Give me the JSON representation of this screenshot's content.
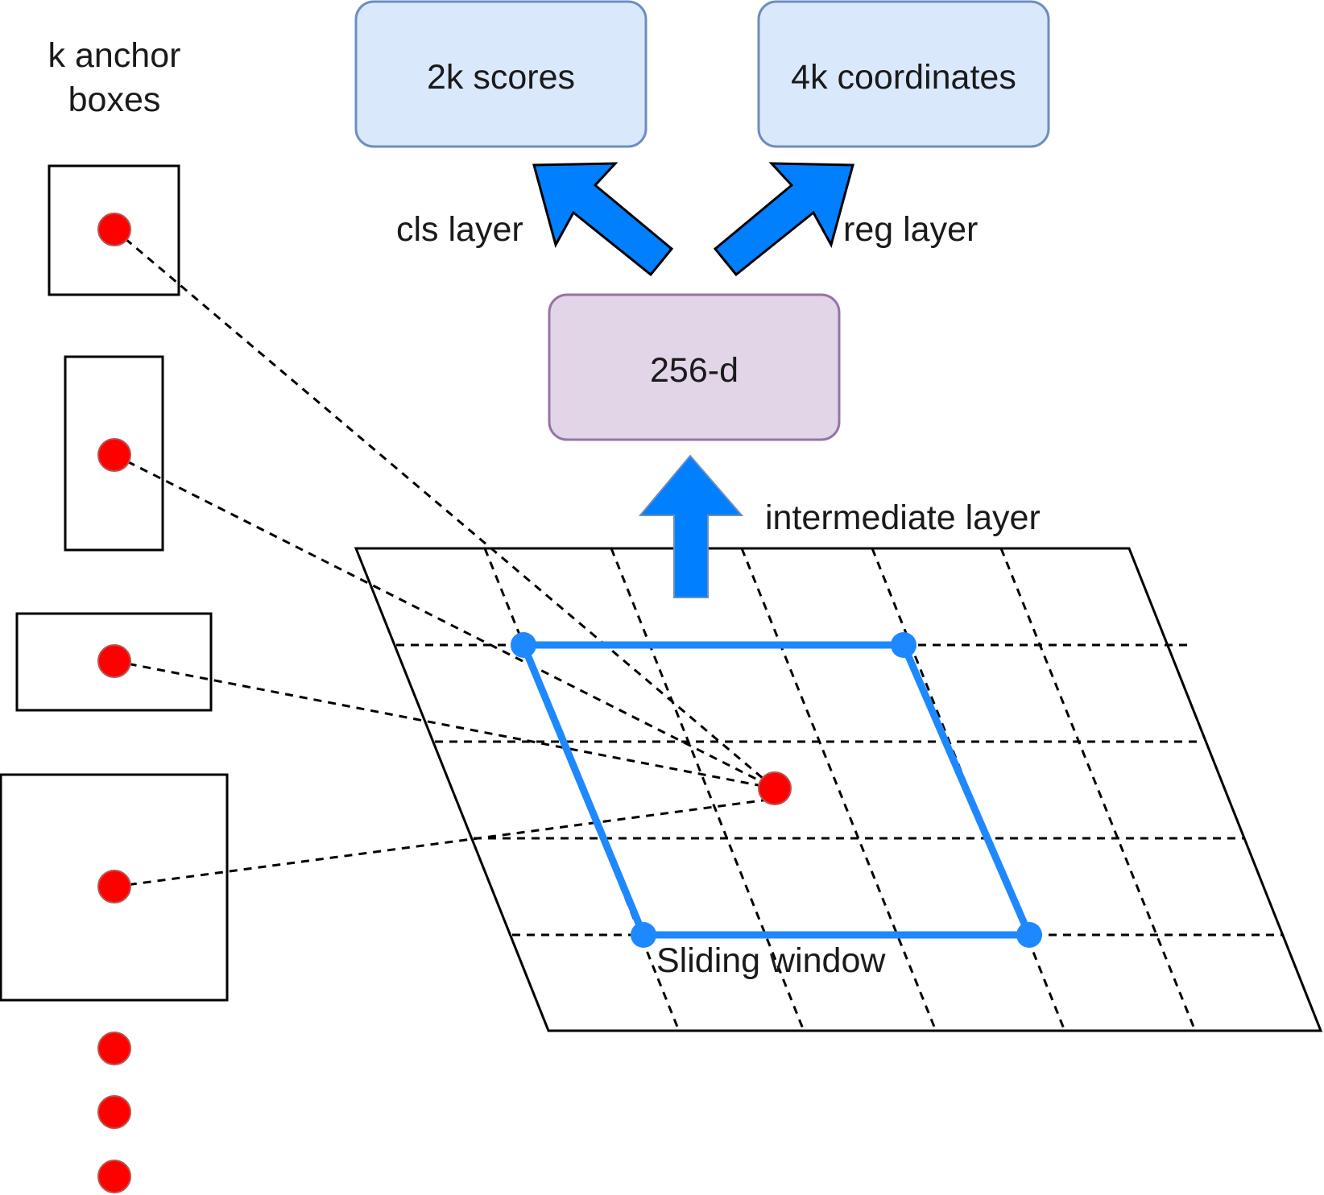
{
  "title_lines": [
    "k anchor",
    "boxes"
  ],
  "boxes": {
    "scores": "2k scores",
    "coordinates": "4k coordinates",
    "feature": "256-d"
  },
  "labels": {
    "cls": "cls layer",
    "reg": "reg layer",
    "intermediate": "intermediate layer",
    "sliding": "Sliding window"
  },
  "colors": {
    "score_box_fill": "#dae8fc",
    "score_box_stroke": "#6c8ebf",
    "feature_box_fill": "#e1d5e7",
    "feature_box_stroke": "#9673a6",
    "arrow": "#007fff",
    "window": "#1e88ff",
    "anchor_dot": "#ff0000",
    "anchor_dot_stroke": "#b85450"
  }
}
